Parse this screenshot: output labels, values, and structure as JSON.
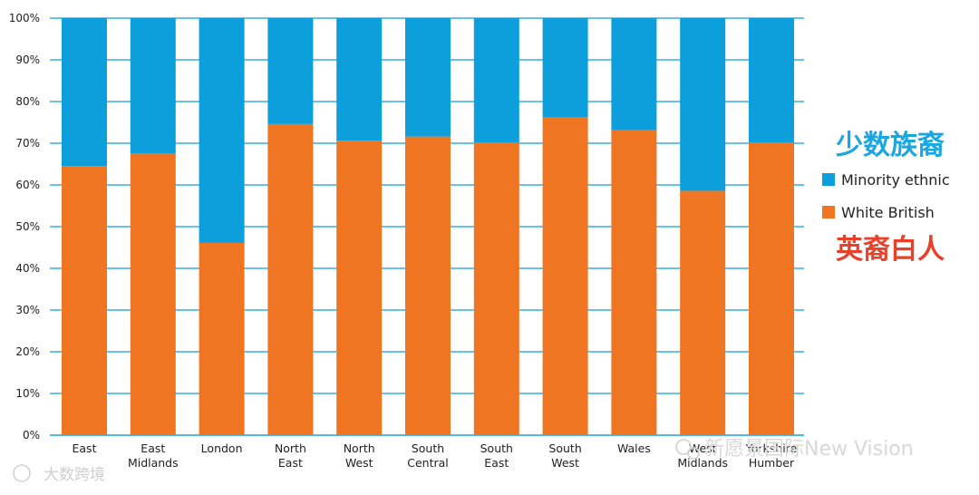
{
  "chart_data": {
    "type": "bar",
    "stacked": true,
    "categories": [
      [
        "East"
      ],
      [
        "East",
        "Midlands"
      ],
      [
        "London"
      ],
      [
        "North",
        "East"
      ],
      [
        "North",
        "West"
      ],
      [
        "South",
        "Central"
      ],
      [
        "South",
        "East"
      ],
      [
        "South",
        "West"
      ],
      [
        "Wales"
      ],
      [
        "West",
        "Midlands"
      ],
      [
        "Yorkshire",
        "Humber"
      ]
    ],
    "series": [
      {
        "name": "White British",
        "color": "#f07522",
        "values": [
          64.5,
          67.6,
          46.1,
          74.6,
          70.6,
          71.6,
          70.2,
          76.3,
          73.1,
          58.6,
          70.2
        ]
      },
      {
        "name": "Minority ethnic",
        "color": "#0c9fdc",
        "values": [
          35.5,
          32.4,
          53.9,
          25.4,
          29.4,
          28.4,
          29.8,
          23.7,
          26.9,
          41.4,
          29.8
        ]
      }
    ],
    "ylim": [
      0,
      100
    ],
    "yticks": [
      "0%",
      "10%",
      "20%",
      "30%",
      "40%",
      "50%",
      "60%",
      "70%",
      "80%",
      "90%",
      "100%"
    ],
    "grid": true,
    "legend_position": "right"
  },
  "legend": {
    "minority_cn": "少数族裔",
    "minority_en": "Minority ethnic",
    "white_en": "White British",
    "white_cn": "英裔白人",
    "minority_color": "#0c9fdc",
    "white_color": "#f07522",
    "cn_minority_color": "#1aa6e0",
    "cn_white_color": "#e8412a"
  },
  "watermarks": {
    "bottom_left": "大数跨境",
    "bottom_right": "新愿景国际New Vision"
  }
}
